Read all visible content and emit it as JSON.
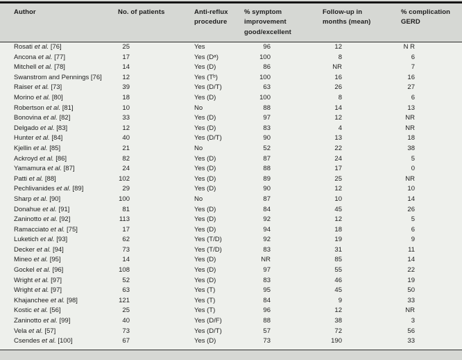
{
  "table": {
    "header": [
      {
        "lines": [
          "Author",
          "",
          ""
        ]
      },
      {
        "lines": [
          "No. of patients",
          "",
          ""
        ]
      },
      {
        "lines": [
          "Anti-reflux",
          "procedure",
          ""
        ]
      },
      {
        "lines": [
          "% symptom",
          "improvement",
          "good/excellent"
        ]
      },
      {
        "lines": [
          "Follow-up in",
          "months (mean)",
          ""
        ]
      },
      {
        "lines": [
          "% complication",
          "GERD",
          ""
        ]
      }
    ],
    "rows": [
      {
        "author": "Rosati",
        "etal": " et al. ",
        "ref": "[76]",
        "patients": "25",
        "procedure": "Yes",
        "symptom": "96",
        "followup": "12",
        "complication": "N R"
      },
      {
        "author": "Ancona",
        "etal": " et al. ",
        "ref": "[77]",
        "patients": "17",
        "procedure": "Yes (Dᵃ)",
        "symptom": "100",
        "followup": "8",
        "complication": "6"
      },
      {
        "author": "Mitchell",
        "etal": " et al. ",
        "ref": "[78]",
        "patients": "14",
        "procedure": "Yes (D)",
        "symptom": "86",
        "followup": "NR",
        "complication": "7"
      },
      {
        "author": "Swanstrom and Pennings",
        "etal": " ",
        "ref": "[76]",
        "patients": "12",
        "procedure": "Yes (Tᵇ)",
        "symptom": "100",
        "followup": "16",
        "complication": "16"
      },
      {
        "author": "Raiser",
        "etal": " et al. ",
        "ref": "[73]",
        "patients": "39",
        "procedure": "Yes (D/T)",
        "symptom": "63",
        "followup": "26",
        "complication": "27"
      },
      {
        "author": "Morino",
        "etal": " et al. ",
        "ref": "[80]",
        "patients": "18",
        "procedure": "Yes (D)",
        "symptom": "100",
        "followup": "8",
        "complication": "6"
      },
      {
        "author": "Robertson",
        "etal": " et al. ",
        "ref": "[81]",
        "patients": "10",
        "procedure": "No",
        "symptom": "88",
        "followup": "14",
        "complication": "13"
      },
      {
        "author": "Bonovina",
        "etal": " et al. ",
        "ref": "[82]",
        "patients": "33",
        "procedure": "Yes (D)",
        "symptom": "97",
        "followup": "12",
        "complication": "NR"
      },
      {
        "author": "Delgado",
        "etal": " et al. ",
        "ref": "[83]",
        "patients": "12",
        "procedure": "Yes (D)",
        "symptom": "83",
        "followup": "4",
        "complication": "NR"
      },
      {
        "author": "Hunter",
        "etal": " et al. ",
        "ref": "[84]",
        "patients": "40",
        "procedure": "Yes (D/T)",
        "symptom": "90",
        "followup": "13",
        "complication": "18"
      },
      {
        "author": "Kjellin",
        "etal": " et al. ",
        "ref": "[85]",
        "patients": "21",
        "procedure": "No",
        "symptom": "52",
        "followup": "22",
        "complication": "38"
      },
      {
        "author": "Ackroyd",
        "etal": " et al. ",
        "ref": "[86]",
        "patients": "82",
        "procedure": "Yes (D)",
        "symptom": "87",
        "followup": "24",
        "complication": "5"
      },
      {
        "author": "Yamamura",
        "etal": " et al. ",
        "ref": "[87]",
        "patients": "24",
        "procedure": "Yes (D)",
        "symptom": "88",
        "followup": "17",
        "complication": "0"
      },
      {
        "author": "Patti",
        "etal": " et al. ",
        "ref": "[88]",
        "patients": "102",
        "procedure": "Yes (D)",
        "symptom": "89",
        "followup": "25",
        "complication": "NR"
      },
      {
        "author": "Pechlivanides",
        "etal": " et al. ",
        "ref": "[89]",
        "patients": "29",
        "procedure": "Yes (D)",
        "symptom": "90",
        "followup": "12",
        "complication": "10"
      },
      {
        "author": "Sharp",
        "etal": " et al. ",
        "ref": "[90]",
        "patients": "100",
        "procedure": "No",
        "symptom": "87",
        "followup": "10",
        "complication": "14"
      },
      {
        "author": "Donahue",
        "etal": " et al. ",
        "ref": "[91]",
        "patients": "81",
        "procedure": "Yes (D)",
        "symptom": "84",
        "followup": "45",
        "complication": "26"
      },
      {
        "author": "Zaninotto",
        "etal": " et al. ",
        "ref": "[92]",
        "patients": "113",
        "procedure": "Yes (D)",
        "symptom": "92",
        "followup": "12",
        "complication": "5"
      },
      {
        "author": "Ramacciato",
        "etal": " et al. ",
        "ref": "[75]",
        "patients": "17",
        "procedure": "Yes (D)",
        "symptom": "94",
        "followup": "18",
        "complication": "6"
      },
      {
        "author": "Luketich",
        "etal": " et al. ",
        "ref": "[93]",
        "patients": "62",
        "procedure": "Yes (T/D)",
        "symptom": "92",
        "followup": "19",
        "complication": "9"
      },
      {
        "author": "Decker",
        "etal": " et al. ",
        "ref": "[94]",
        "patients": "73",
        "procedure": "Yes (T/D)",
        "symptom": "83",
        "followup": "31",
        "complication": "11"
      },
      {
        "author": "Mineo",
        "etal": " et al. ",
        "ref": "[95]",
        "patients": "14",
        "procedure": "Yes (D)",
        "symptom": "NR",
        "followup": "85",
        "complication": "14"
      },
      {
        "author": "Gockel",
        "etal": " et al. ",
        "ref": "[96]",
        "patients": "108",
        "procedure": "Yes (D)",
        "symptom": "97",
        "followup": "55",
        "complication": "22"
      },
      {
        "author": "Wright",
        "etal": " et al. ",
        "ref": "[97]",
        "patients": "52",
        "procedure": "Yes (D)",
        "symptom": "83",
        "followup": "46",
        "complication": "19"
      },
      {
        "author": "Wright",
        "etal": " et al. ",
        "ref": "[97]",
        "patients": "63",
        "procedure": "Yes (T)",
        "symptom": "95",
        "followup": "45",
        "complication": "50"
      },
      {
        "author": "Khajanchee",
        "etal": " et al. ",
        "ref": "[98]",
        "patients": "121",
        "procedure": "Yes (T)",
        "symptom": "84",
        "followup": "9",
        "complication": "33"
      },
      {
        "author": "Kostic",
        "etal": " et al. ",
        "ref": "[56]",
        "patients": "25",
        "procedure": "Yes (T)",
        "symptom": "96",
        "followup": "12",
        "complication": "NR"
      },
      {
        "author": "Zaninotto",
        "etal": " et al. ",
        "ref": "[99]",
        "patients": "40",
        "procedure": "Yes (D/F)",
        "symptom": "88",
        "followup": "38",
        "complication": "3"
      },
      {
        "author": "Vela",
        "etal": " et al. ",
        "ref": "[57]",
        "patients": "73",
        "procedure": "Yes (D/T)",
        "symptom": "57",
        "followup": "72",
        "complication": "56"
      },
      {
        "author": "Csendes",
        "etal": " et al. ",
        "ref": "[100]",
        "patients": "67",
        "procedure": "Yes (D)",
        "symptom": "73",
        "followup": "190",
        "complication": "33"
      }
    ]
  },
  "colors": {
    "header_bg": "#d6d8d4",
    "body_bg": "#eef0ec",
    "rule": "#151515",
    "text": "#1c1c1c"
  }
}
